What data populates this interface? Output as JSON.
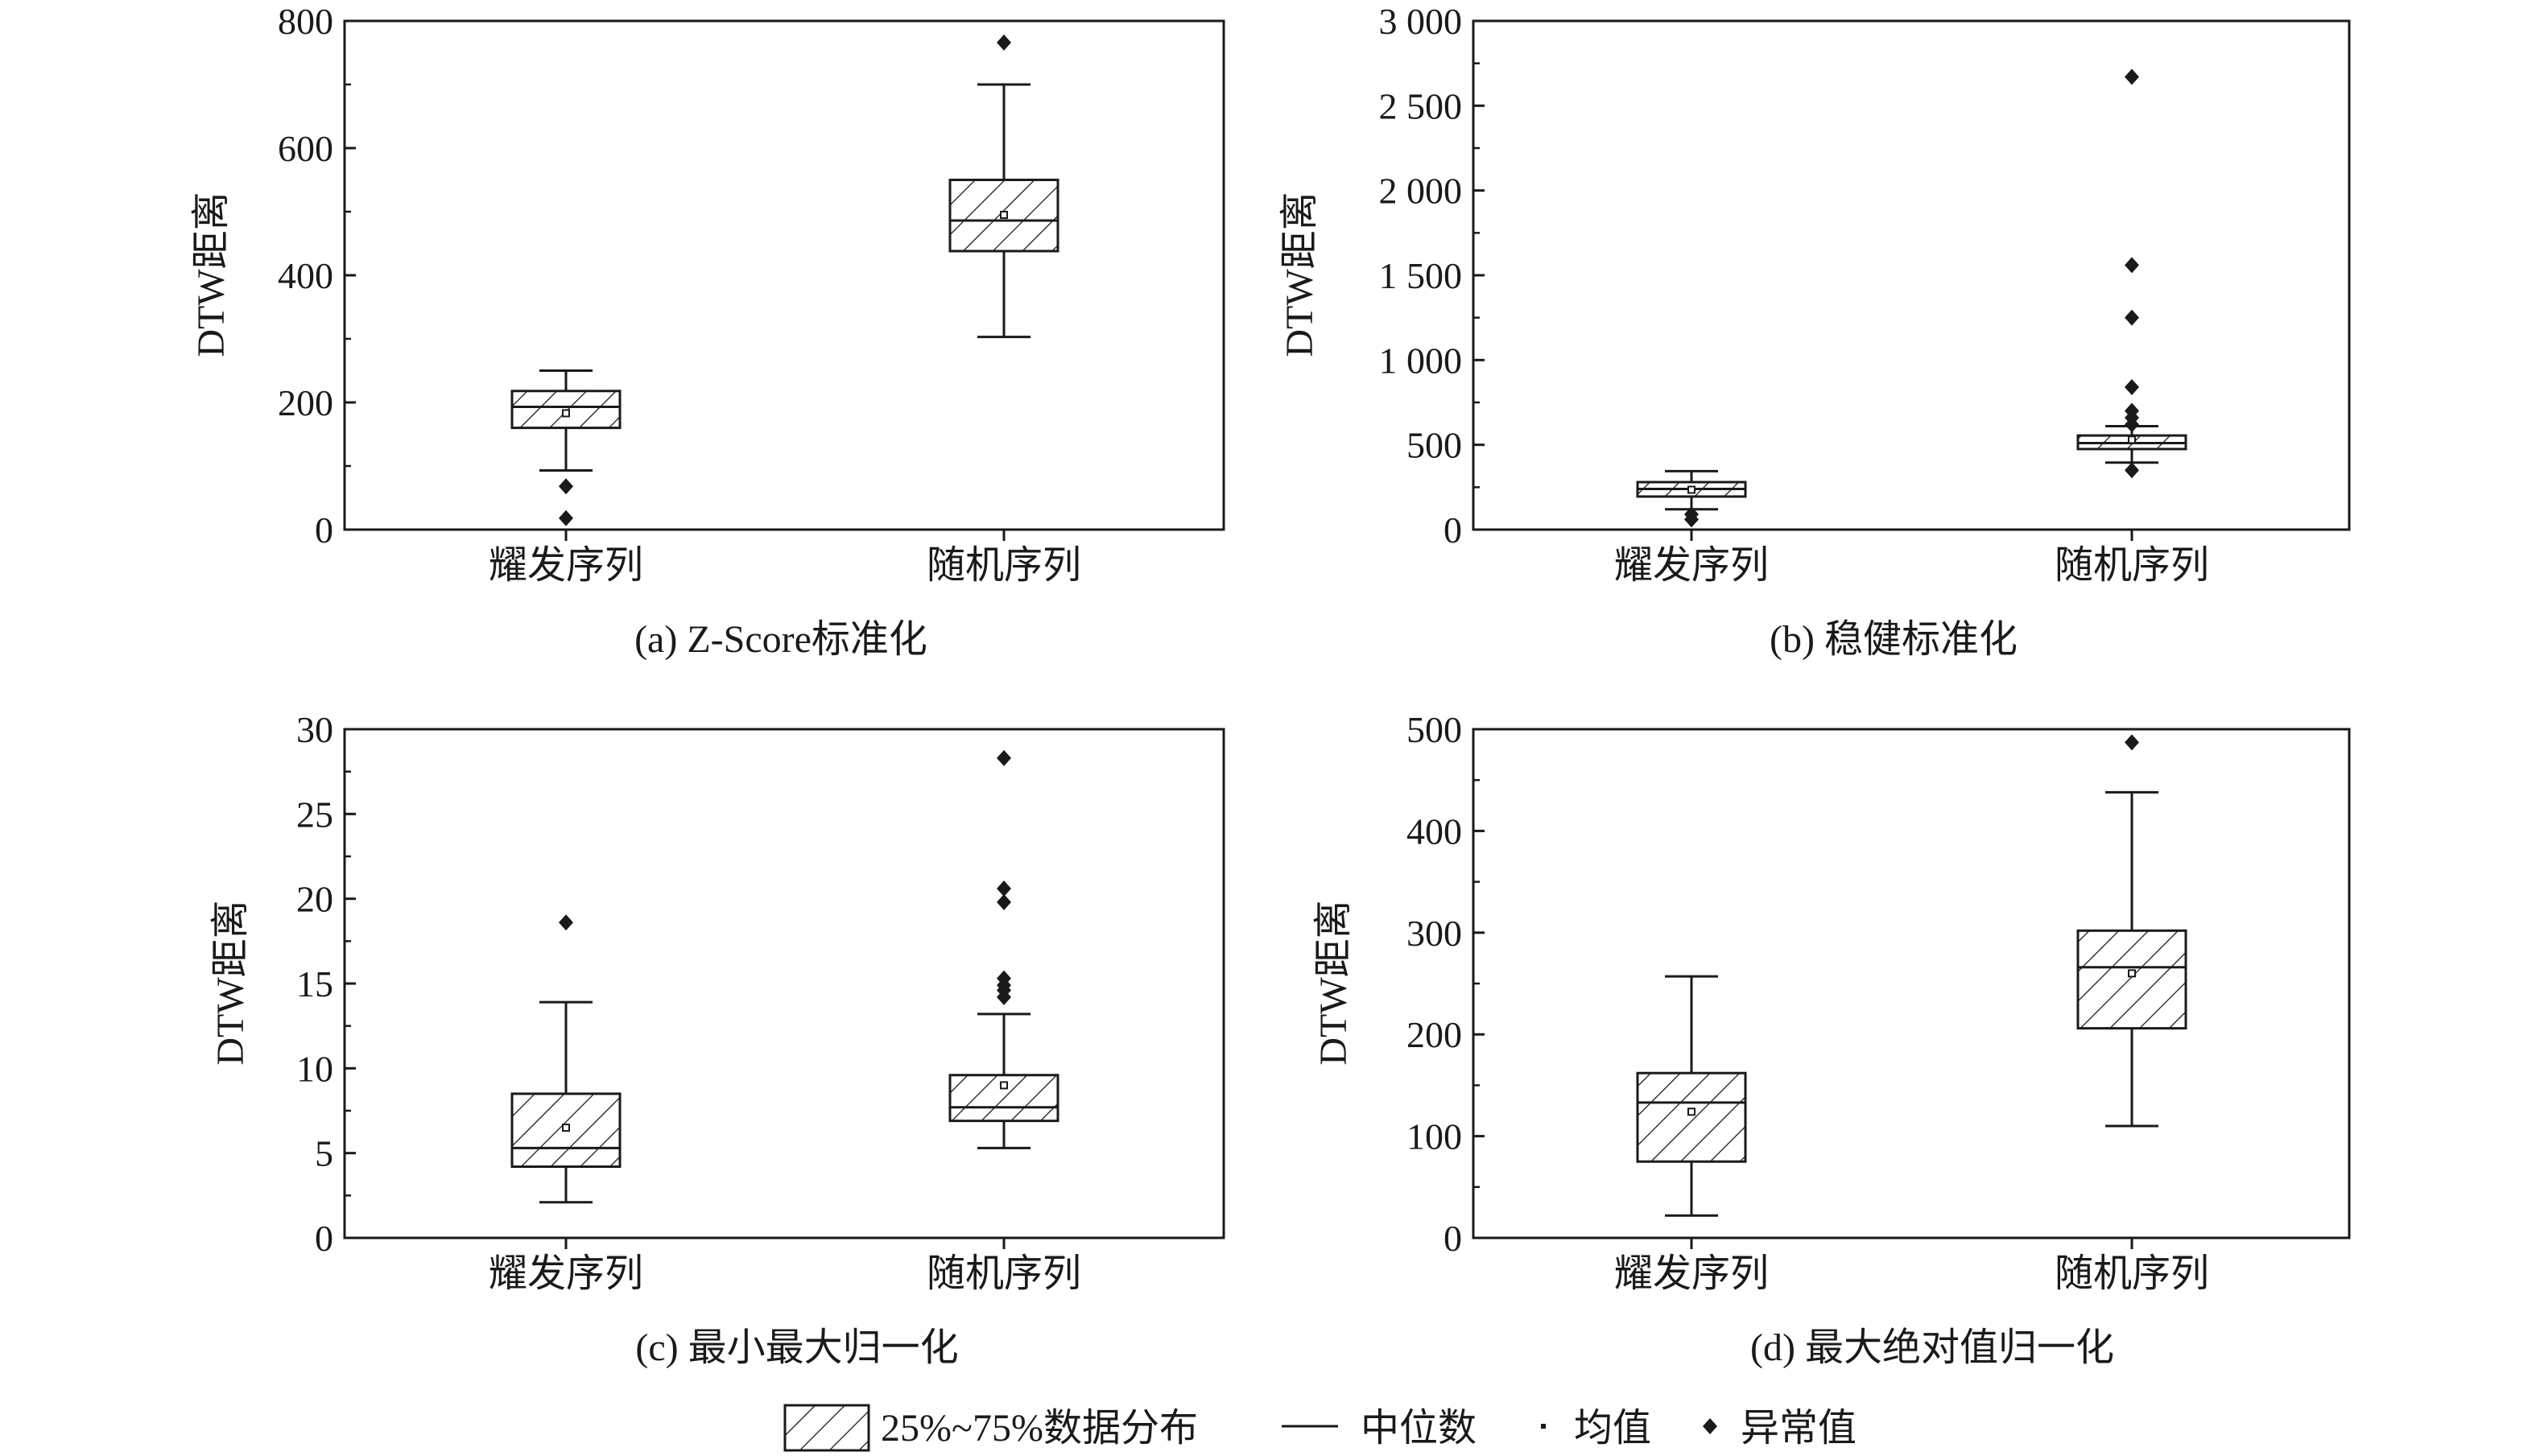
{
  "chart_data": [
    {
      "type": "box",
      "caption": "(a) Z-Score标准化",
      "ylabel": "DTW距离",
      "ylim": [
        0,
        800
      ],
      "yticks": [
        0,
        200,
        400,
        600,
        800
      ],
      "ytick_labels": [
        "0",
        "200",
        "400",
        "600",
        "800"
      ],
      "categories": [
        "耀发序列",
        "随机序列"
      ],
      "boxes": [
        {
          "whisker_low": 93,
          "q1": 160,
          "median": 193,
          "q3": 218,
          "whisker_high": 250,
          "mean": 183,
          "outliers": [
            68,
            18
          ]
        },
        {
          "whisker_low": 303,
          "q1": 438,
          "median": 486,
          "q3": 550,
          "whisker_high": 700,
          "mean": 495,
          "outliers": [
            766
          ]
        }
      ]
    },
    {
      "type": "box",
      "caption": "(b) 稳健标准化",
      "ylabel": "DTW距离",
      "ylim": [
        0,
        3000
      ],
      "yticks": [
        0,
        500,
        1000,
        1500,
        2000,
        2500,
        3000
      ],
      "ytick_labels": [
        "0",
        "500",
        "1 000",
        "1 500",
        "2 000",
        "2 500",
        "3 000"
      ],
      "categories": [
        "耀发序列",
        "随机序列"
      ],
      "boxes": [
        {
          "whisker_low": 120,
          "q1": 195,
          "median": 240,
          "q3": 280,
          "whisker_high": 345,
          "mean": 235,
          "outliers": [
            90,
            60
          ]
        },
        {
          "whisker_low": 395,
          "q1": 475,
          "median": 510,
          "q3": 555,
          "whisker_high": 610,
          "mean": 530,
          "outliers": [
            2670,
            1560,
            1250,
            840,
            700,
            660,
            620,
            350
          ]
        }
      ]
    },
    {
      "type": "box",
      "caption": "(c) 最小最大归一化",
      "ylabel": "DTW距离",
      "ylim": [
        0,
        30
      ],
      "yticks": [
        0,
        5,
        10,
        15,
        20,
        25,
        30
      ],
      "ytick_labels": [
        "0",
        "5",
        "10",
        "15",
        "20",
        "25",
        "30"
      ],
      "categories": [
        "耀发序列",
        "随机序列"
      ],
      "boxes": [
        {
          "whisker_low": 2.1,
          "q1": 4.2,
          "median": 5.3,
          "q3": 8.5,
          "whisker_high": 13.9,
          "mean": 6.5,
          "outliers": [
            18.6
          ]
        },
        {
          "whisker_low": 5.3,
          "q1": 6.9,
          "median": 7.7,
          "q3": 9.6,
          "whisker_high": 13.2,
          "mean": 9.0,
          "outliers": [
            28.3,
            20.6,
            19.8,
            15.3,
            14.9,
            14.6,
            14.2
          ]
        }
      ]
    },
    {
      "type": "box",
      "caption": "(d) 最大绝对值归一化",
      "ylabel": "DTW距离",
      "ylim": [
        0,
        500
      ],
      "yticks": [
        0,
        100,
        200,
        300,
        400,
        500
      ],
      "ytick_labels": [
        "0",
        "100",
        "200",
        "300",
        "400",
        "500"
      ],
      "categories": [
        "耀发序列",
        "随机序列"
      ],
      "boxes": [
        {
          "whisker_low": 22,
          "q1": 75,
          "median": 133,
          "q3": 162,
          "whisker_high": 257,
          "mean": 124,
          "outliers": []
        },
        {
          "whisker_low": 110,
          "q1": 206,
          "median": 266,
          "q3": 302,
          "whisker_high": 438,
          "mean": 260,
          "outliers": [
            487
          ]
        }
      ]
    }
  ],
  "legend": {
    "items": [
      {
        "key": "box",
        "label": "25%~75%数据分布"
      },
      {
        "key": "median",
        "label": "中位数"
      },
      {
        "key": "mean",
        "label": "均值"
      },
      {
        "key": "outlier",
        "label": "异常值"
      }
    ]
  }
}
